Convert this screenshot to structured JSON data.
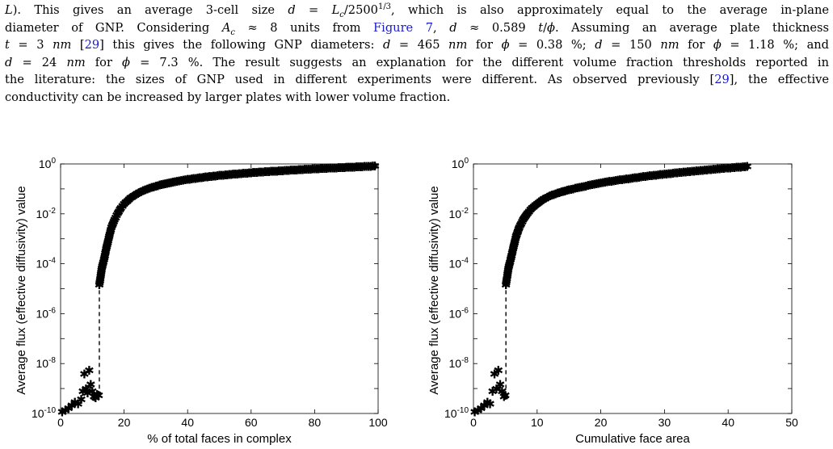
{
  "paragraph": {
    "l1": {
      "t1": "L",
      "t2": "). This gives an average 3-cell size ",
      "t3": "d",
      "t4": " = ",
      "t5": "L",
      "t6": "c",
      "t7": "/2500",
      "t8": "1/3",
      "t9": ", which is also approximately equal to the average in-plane"
    },
    "l2": {
      "t1": "diameter of GNP. Considering ",
      "t2": "A",
      "t3": "c",
      "t4": " ≈ 8 units from ",
      "t5": "Figure 7",
      "t6": ", ",
      "t7": "d",
      "t8": " ≈ 0.589 ",
      "t9": "t",
      "t10": "/",
      "t11": "ϕ",
      "t12": ". Assuming an average plate thickness"
    },
    "l3": {
      "t1": "t",
      "t2": " = 3 ",
      "t3": "nm",
      "t4": " [",
      "t5": "29",
      "t6": "] this gives the following GNP diameters: ",
      "t7": "d",
      "t8": " = 465 ",
      "t9": "nm",
      "t10": " for ",
      "t11": "ϕ",
      "t12": " = 0.38 %; ",
      "t13": "d",
      "t14": " = 150 ",
      "t15": "nm",
      "t16": " for ",
      "t17": "ϕ",
      "t18": " = 1.18 %; and"
    },
    "l4": {
      "t1": "d",
      "t2": " = 24 ",
      "t3": "nm",
      "t4": " for ",
      "t5": "ϕ",
      "t6": " = 7.3 %. The result suggests an explanation for the different volume fraction thresholds reported in"
    },
    "l5": {
      "t1": "the literature: the sizes of GNP used in different experiments were different. As observed previously [",
      "t2": "29",
      "t3": "], the effective"
    },
    "l6": {
      "t1": "conductivity can be increased by larger plates with lower volume fraction."
    }
  },
  "chart_data": [
    {
      "type": "scatter",
      "marker": "asterisk",
      "xlabel": "% of total faces in complex",
      "ylabel": "Average flux (effective diffusivity) value",
      "xlim": [
        0,
        100
      ],
      "ylim": [
        1e-10,
        1
      ],
      "yscale": "log",
      "xticks": [
        "0",
        "20",
        "40",
        "60",
        "80",
        "100"
      ],
      "yticks": [
        {
          "base": "10",
          "exp": "0"
        },
        {
          "base": "10",
          "exp": "-2"
        },
        {
          "base": "10",
          "exp": "-4"
        },
        {
          "base": "10",
          "exp": "-6"
        },
        {
          "base": "10",
          "exp": "-8"
        },
        {
          "base": "10",
          "exp": "-10"
        }
      ],
      "jump": {
        "x": 12.2,
        "y_from": 5e-10,
        "y_to": 1.5e-05
      },
      "points": [
        [
          0.5,
          1.2e-10
        ],
        [
          1.5,
          1.4e-10
        ],
        [
          2.5,
          1.7e-10
        ],
        [
          3.5,
          2.2e-10
        ],
        [
          4.5,
          3e-10
        ],
        [
          5.5,
          2.5e-10
        ],
        [
          6.5,
          3.8e-10
        ],
        [
          7,
          8e-10
        ],
        [
          7.5,
          4e-09
        ],
        [
          8,
          1e-09
        ],
        [
          8.5,
          7e-10
        ],
        [
          9,
          5.5e-09
        ],
        [
          9.5,
          1.5e-09
        ],
        [
          10,
          8e-10
        ],
        [
          10.5,
          5e-10
        ],
        [
          11,
          4.5e-10
        ],
        [
          11.5,
          6e-10
        ],
        [
          12,
          5.5e-10
        ],
        [
          12.2,
          1.5e-05
        ],
        [
          13,
          7e-05
        ],
        [
          13.8,
          0.00018
        ],
        [
          14.5,
          0.0005
        ],
        [
          15.3,
          0.0013
        ],
        [
          16,
          0.003
        ],
        [
          17,
          0.006
        ],
        [
          18,
          0.011
        ],
        [
          19,
          0.018
        ],
        [
          20,
          0.026
        ],
        [
          22,
          0.045
        ],
        [
          24,
          0.066
        ],
        [
          26,
          0.088
        ],
        [
          28,
          0.11
        ],
        [
          30,
          0.135
        ],
        [
          33,
          0.17
        ],
        [
          36,
          0.205
        ],
        [
          40,
          0.25
        ],
        [
          45,
          0.305
        ],
        [
          50,
          0.36
        ],
        [
          55,
          0.41
        ],
        [
          60,
          0.46
        ],
        [
          65,
          0.51
        ],
        [
          70,
          0.56
        ],
        [
          75,
          0.61
        ],
        [
          80,
          0.66
        ],
        [
          85,
          0.71
        ],
        [
          90,
          0.76
        ],
        [
          95,
          0.81
        ],
        [
          99,
          0.86
        ]
      ]
    },
    {
      "type": "scatter",
      "marker": "asterisk",
      "xlabel": "Cumulative face area",
      "ylabel": "Average flux (effective diffusivity) value",
      "xlim": [
        0,
        50
      ],
      "ylim": [
        1e-10,
        1
      ],
      "yscale": "log",
      "xticks": [
        "0",
        "10",
        "20",
        "30",
        "40",
        "50"
      ],
      "yticks": [
        {
          "base": "10",
          "exp": "0"
        },
        {
          "base": "10",
          "exp": "-2"
        },
        {
          "base": "10",
          "exp": "-4"
        },
        {
          "base": "10",
          "exp": "-6"
        },
        {
          "base": "10",
          "exp": "-8"
        },
        {
          "base": "10",
          "exp": "-10"
        }
      ],
      "jump": {
        "x": 5.1,
        "y_from": 5e-10,
        "y_to": 1.5e-05
      },
      "points": [
        [
          0.2,
          1.2e-10
        ],
        [
          0.7,
          1.4e-10
        ],
        [
          1.2,
          1.7e-10
        ],
        [
          1.7,
          2.2e-10
        ],
        [
          2.2,
          3e-10
        ],
        [
          2.6,
          2.5e-10
        ],
        [
          3,
          8e-10
        ],
        [
          3.3,
          4e-09
        ],
        [
          3.6,
          1e-09
        ],
        [
          3.9,
          5.5e-09
        ],
        [
          4.2,
          1.5e-09
        ],
        [
          4.5,
          8e-10
        ],
        [
          4.8,
          5e-10
        ],
        [
          5,
          5.5e-10
        ],
        [
          5.1,
          1.5e-05
        ],
        [
          5.5,
          7e-05
        ],
        [
          5.9,
          0.00018
        ],
        [
          6.3,
          0.0005
        ],
        [
          6.7,
          0.0013
        ],
        [
          7.2,
          0.003
        ],
        [
          7.8,
          0.006
        ],
        [
          8.5,
          0.011
        ],
        [
          9.2,
          0.018
        ],
        [
          10,
          0.026
        ],
        [
          11,
          0.04
        ],
        [
          12,
          0.055
        ],
        [
          13.5,
          0.075
        ],
        [
          15,
          0.095
        ],
        [
          17,
          0.125
        ],
        [
          19,
          0.16
        ],
        [
          21,
          0.2
        ],
        [
          23,
          0.24
        ],
        [
          25,
          0.28
        ],
        [
          27,
          0.33
        ],
        [
          29,
          0.38
        ],
        [
          31,
          0.43
        ],
        [
          33,
          0.49
        ],
        [
          35,
          0.55
        ],
        [
          37,
          0.61
        ],
        [
          39,
          0.68
        ],
        [
          41,
          0.75
        ],
        [
          43,
          0.82
        ]
      ]
    }
  ]
}
